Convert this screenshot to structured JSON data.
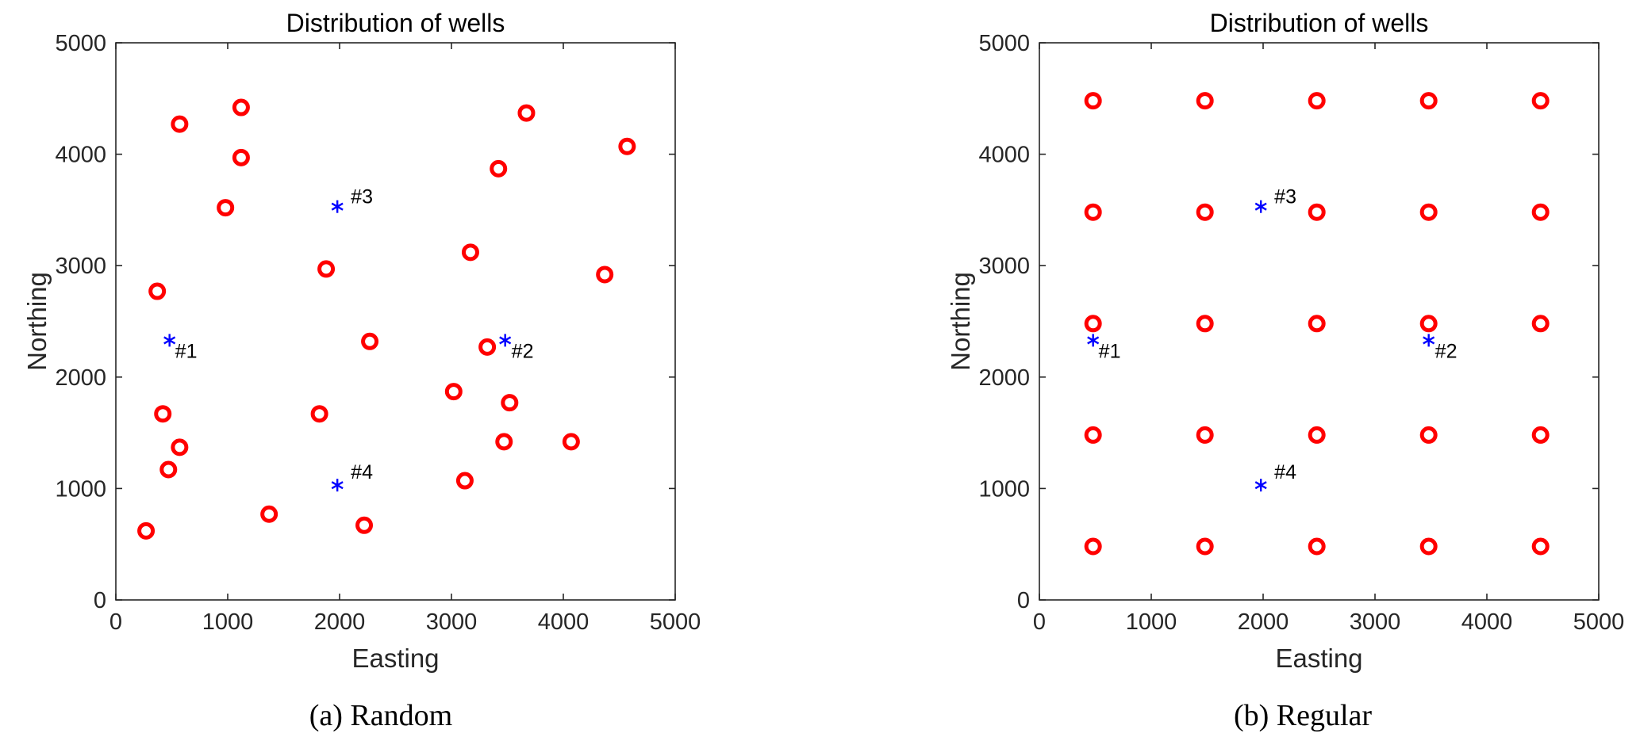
{
  "panels": [
    {
      "caption": "(a) Random",
      "chart_data": {
        "type": "scatter",
        "title": "Distribution of wells",
        "xlabel": "Easting",
        "ylabel": "Northing",
        "xlim": [
          0,
          5000
        ],
        "ylim": [
          0,
          5000
        ],
        "xticks": [
          "0",
          "1000",
          "2000",
          "3000",
          "4000",
          "5000"
        ],
        "yticks": [
          "0",
          "1000",
          "2000",
          "3000",
          "4000",
          "5000"
        ],
        "grid": false,
        "series": [
          {
            "marker": "circle",
            "color": "#ff0000",
            "x": [
              570,
              1120,
              1120,
              980,
              370,
              1880,
              420,
              570,
              470,
              270,
              1370,
              1820,
              2270,
              2220,
              3670,
              4570,
              3420,
              3170,
              4370,
              3320,
              3020,
              3520,
              3470,
              4070,
              3120
            ],
            "y": [
              4270,
              4420,
              3970,
              3520,
              2770,
              2970,
              1670,
              1370,
              1170,
              620,
              770,
              1670,
              2320,
              670,
              4370,
              4070,
              3870,
              3120,
              2920,
              2270,
              1870,
              1770,
              1420,
              1420,
              1070
            ]
          },
          {
            "marker": "asterisk",
            "color": "#0000ff",
            "x": [
              480,
              3480,
              1980,
              1980
            ],
            "y": [
              2330,
              2330,
              3530,
              1030
            ],
            "labels": [
              "#1",
              "#2",
              "#3",
              "#4"
            ]
          }
        ]
      }
    },
    {
      "caption": "(b) Regular",
      "chart_data": {
        "type": "scatter",
        "title": "Distribution of wells",
        "xlabel": "Easting",
        "ylabel": "Northing",
        "xlim": [
          0,
          5000
        ],
        "ylim": [
          0,
          5000
        ],
        "xticks": [
          "0",
          "1000",
          "2000",
          "3000",
          "4000",
          "5000"
        ],
        "yticks": [
          "0",
          "1000",
          "2000",
          "3000",
          "4000",
          "5000"
        ],
        "grid": false,
        "series": [
          {
            "marker": "circle",
            "color": "#ff0000",
            "x": [
              480,
              1480,
              2480,
              3480,
              4480,
              480,
              1480,
              2480,
              3480,
              4480,
              480,
              1480,
              2480,
              3480,
              4480,
              480,
              1480,
              2480,
              3480,
              4480,
              480,
              1480,
              2480,
              3480,
              4480
            ],
            "y": [
              4480,
              4480,
              4480,
              4480,
              4480,
              3480,
              3480,
              3480,
              3480,
              3480,
              2480,
              2480,
              2480,
              2480,
              2480,
              1480,
              1480,
              1480,
              1480,
              1480,
              480,
              480,
              480,
              480,
              480
            ]
          },
          {
            "marker": "asterisk",
            "color": "#0000ff",
            "x": [
              480,
              3480,
              1980,
              1980
            ],
            "y": [
              2330,
              2330,
              3530,
              1030
            ],
            "labels": [
              "#1",
              "#2",
              "#3",
              "#4"
            ]
          }
        ]
      }
    }
  ]
}
